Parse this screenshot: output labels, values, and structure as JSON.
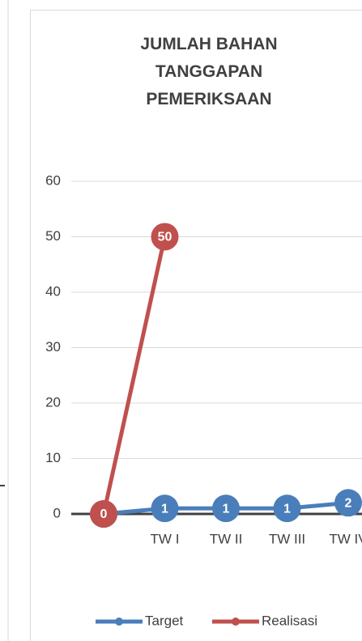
{
  "chart_data": {
    "type": "line",
    "title": "JUMLAH BAHAN TANGGAPAN PEMERIKSAAN",
    "categories": [
      null,
      "TW I",
      "TW II",
      "TW III",
      "TW IV"
    ],
    "series": [
      {
        "name": "Target",
        "color": "#4a7ebb",
        "values": [
          0,
          1,
          1,
          1,
          2
        ]
      },
      {
        "name": "Realisasi",
        "color": "#c0504d",
        "values": [
          0,
          50,
          null,
          null,
          null
        ]
      }
    ],
    "ylim": [
      0,
      60
    ],
    "yticks": [
      0,
      10,
      20,
      30,
      40,
      50,
      60
    ],
    "grid": true,
    "legend": "bottom"
  }
}
